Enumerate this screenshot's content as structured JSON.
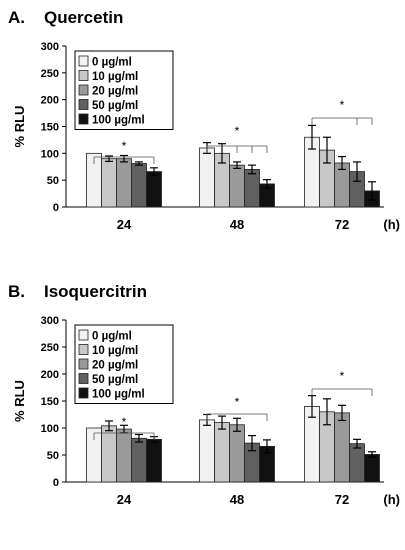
{
  "chart_data": [
    {
      "type": "bar",
      "panel_label": "A.",
      "title": "Quercetin",
      "ylabel": "% RLU",
      "xunit": "(h)",
      "ylim": [
        0,
        300
      ],
      "yticks": [
        0,
        50,
        100,
        150,
        200,
        250,
        300
      ],
      "grid": false,
      "legend_position": "top-left",
      "categories": [
        "24",
        "48",
        "72"
      ],
      "series": [
        {
          "name": "0 µg/ml",
          "color": "#f2f2f2",
          "values": [
            100,
            110,
            130
          ],
          "errors": [
            0,
            10,
            22
          ]
        },
        {
          "name": "10 µg/ml",
          "color": "#c8c8c8",
          "values": [
            90,
            100,
            106
          ],
          "errors": [
            5,
            18,
            24
          ]
        },
        {
          "name": "20 µg/ml",
          "color": "#9a9a9a",
          "values": [
            90,
            78,
            82
          ],
          "errors": [
            6,
            6,
            12
          ]
        },
        {
          "name": "50 µg/ml",
          "color": "#606060",
          "values": [
            81,
            70,
            66
          ],
          "errors": [
            3,
            8,
            18
          ]
        },
        {
          "name": "100 µg/ml",
          "color": "#111111",
          "values": [
            66,
            43,
            30
          ],
          "errors": [
            7,
            8,
            17
          ]
        }
      ],
      "significance_marker": "*"
    },
    {
      "type": "bar",
      "panel_label": "B.",
      "title": "Isoquercitrin",
      "ylabel": "% RLU",
      "xunit": "(h)",
      "ylim": [
        0,
        300
      ],
      "yticks": [
        0,
        50,
        100,
        150,
        200,
        250,
        300
      ],
      "grid": false,
      "legend_position": "top-left",
      "categories": [
        "24",
        "48",
        "72"
      ],
      "series": [
        {
          "name": "0 µg/ml",
          "color": "#f2f2f2",
          "values": [
            100,
            115,
            140
          ],
          "errors": [
            0,
            10,
            20
          ]
        },
        {
          "name": "10 µg/ml",
          "color": "#c8c8c8",
          "values": [
            104,
            110,
            130
          ],
          "errors": [
            9,
            12,
            24
          ]
        },
        {
          "name": "20 µg/ml",
          "color": "#9a9a9a",
          "values": [
            98,
            106,
            128
          ],
          "errors": [
            7,
            12,
            14
          ]
        },
        {
          "name": "50 µg/ml",
          "color": "#606060",
          "values": [
            81,
            72,
            71
          ],
          "errors": [
            7,
            14,
            8
          ]
        },
        {
          "name": "100 µg/ml",
          "color": "#111111",
          "values": [
            79,
            66,
            51
          ],
          "errors": [
            5,
            12,
            5
          ]
        }
      ],
      "significance_marker": "*"
    }
  ]
}
